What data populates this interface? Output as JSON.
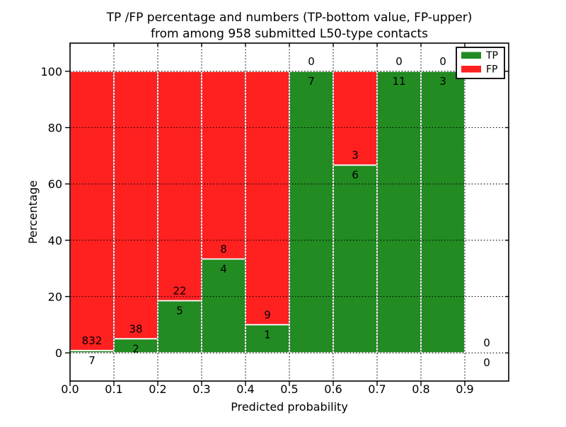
{
  "chart_data": {
    "type": "bar",
    "stacked": true,
    "title": "TP /FP percentage and numbers (TP-bottom value, FP-upper)\nfrom among 958 submitted L50-type contacts",
    "title_line1": "TP /FP percentage and numbers (TP-bottom value, FP-upper)",
    "title_line2": "from among 958 submitted L50-type contacts",
    "xlabel": "Predicted probability",
    "ylabel": "Percentage",
    "xlim": [
      0.0,
      1.0
    ],
    "ylim": [
      -10,
      110
    ],
    "xticks": [
      0.0,
      0.1,
      0.2,
      0.3,
      0.4,
      0.5,
      0.6,
      0.7,
      0.8,
      0.9
    ],
    "yticks": [
      0,
      20,
      40,
      60,
      80,
      100
    ],
    "grid": {
      "on": true,
      "linestyle": "dotted",
      "color": "#000000"
    },
    "total_submitted": 958,
    "series": [
      {
        "name": "TP",
        "color": "#228b22"
      },
      {
        "name": "FP",
        "color": "#ff2020"
      }
    ],
    "bins": [
      {
        "range": [
          0.0,
          0.1
        ],
        "tp": 7,
        "fp": 832
      },
      {
        "range": [
          0.1,
          0.2
        ],
        "tp": 2,
        "fp": 38
      },
      {
        "range": [
          0.2,
          0.3
        ],
        "tp": 5,
        "fp": 22
      },
      {
        "range": [
          0.3,
          0.4
        ],
        "tp": 4,
        "fp": 8
      },
      {
        "range": [
          0.4,
          0.5
        ],
        "tp": 1,
        "fp": 9
      },
      {
        "range": [
          0.5,
          0.6
        ],
        "tp": 7,
        "fp": 0
      },
      {
        "range": [
          0.6,
          0.7
        ],
        "tp": 6,
        "fp": 3
      },
      {
        "range": [
          0.7,
          0.8
        ],
        "tp": 11,
        "fp": 0
      },
      {
        "range": [
          0.8,
          0.9
        ],
        "tp": 3,
        "fp": 0
      },
      {
        "range": [
          0.9,
          1.0
        ],
        "tp": 0,
        "fp": 0
      }
    ],
    "tp_percent_of_bin": [
      0.8,
      5.0,
      18.5,
      33.3,
      10.0,
      100.0,
      66.7,
      100.0,
      100.0,
      null
    ],
    "legend": {
      "position": "upper right",
      "entries": [
        "TP",
        "FP"
      ]
    },
    "colors": {
      "tp": "#228b22",
      "fp": "#ff2020",
      "bar_edge": "#ffffff",
      "grid": "#000000",
      "text": "#000000",
      "background": "#ffffff"
    }
  }
}
